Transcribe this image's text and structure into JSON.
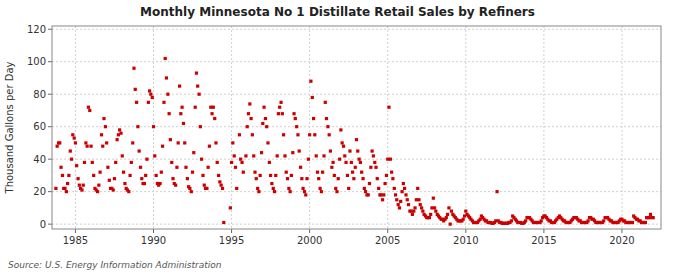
{
  "chart_data": {
    "type": "scatter",
    "title": "Monthly Minnesota No 1 Distillate Retail Sales by Refiners",
    "ylabel": "Thousand Gallons per Day",
    "source": "Source: U.S. Energy Information Administration",
    "color": "#cc0000",
    "marker": "square",
    "grid": true,
    "xlim": [
      1983.5,
      2022.5
    ],
    "ylim": [
      -3,
      122
    ],
    "xticks": [
      1985,
      1990,
      1995,
      2000,
      2005,
      2010,
      2015,
      2020
    ],
    "yticks": [
      0,
      20,
      40,
      60,
      80,
      100,
      120
    ],
    "x": [
      1983.75,
      1983.83,
      1983.92,
      1984.0,
      1984.08,
      1984.17,
      1984.25,
      1984.33,
      1984.42,
      1984.5,
      1984.58,
      1984.67,
      1984.75,
      1984.83,
      1984.92,
      1985.0,
      1985.08,
      1985.17,
      1985.25,
      1985.33,
      1985.42,
      1985.5,
      1985.58,
      1985.67,
      1985.75,
      1985.83,
      1985.92,
      1986.0,
      1986.08,
      1986.17,
      1986.25,
      1986.33,
      1986.42,
      1986.5,
      1986.58,
      1986.67,
      1986.75,
      1986.83,
      1986.92,
      1987.0,
      1987.08,
      1987.17,
      1987.25,
      1987.33,
      1987.42,
      1987.5,
      1987.58,
      1987.67,
      1987.75,
      1987.83,
      1987.92,
      1988.0,
      1988.08,
      1988.17,
      1988.25,
      1988.33,
      1988.42,
      1988.5,
      1988.58,
      1988.67,
      1988.75,
      1988.83,
      1988.92,
      1989.0,
      1989.08,
      1989.17,
      1989.25,
      1989.33,
      1989.42,
      1989.5,
      1989.58,
      1989.67,
      1989.75,
      1989.83,
      1989.92,
      1990.0,
      1990.08,
      1990.17,
      1990.25,
      1990.33,
      1990.42,
      1990.5,
      1990.58,
      1990.67,
      1990.75,
      1990.83,
      1990.92,
      1991.0,
      1991.08,
      1991.17,
      1991.25,
      1991.33,
      1991.42,
      1991.5,
      1991.58,
      1991.67,
      1991.75,
      1991.83,
      1991.92,
      1992.0,
      1992.08,
      1992.17,
      1992.25,
      1992.33,
      1992.42,
      1992.5,
      1992.58,
      1992.67,
      1992.75,
      1992.83,
      1992.92,
      1993.0,
      1993.08,
      1993.17,
      1993.25,
      1993.33,
      1993.42,
      1993.5,
      1993.58,
      1993.67,
      1993.75,
      1993.83,
      1993.92,
      1994.0,
      1994.08,
      1994.17,
      1994.25,
      1994.33,
      1994.42,
      1994.5,
      1994.92,
      1995.0,
      1995.08,
      1995.17,
      1995.25,
      1995.33,
      1995.5,
      1995.58,
      1995.67,
      1995.75,
      1995.92,
      1996.0,
      1996.08,
      1996.17,
      1996.25,
      1996.33,
      1996.42,
      1996.5,
      1996.58,
      1996.67,
      1996.75,
      1996.83,
      1996.92,
      1997.0,
      1997.08,
      1997.17,
      1997.25,
      1997.33,
      1997.42,
      1997.5,
      1997.58,
      1997.67,
      1997.75,
      1997.83,
      1997.92,
      1998.0,
      1998.08,
      1998.17,
      1998.25,
      1998.33,
      1998.42,
      1998.5,
      1998.58,
      1998.67,
      1998.75,
      1998.83,
      1998.92,
      1999.0,
      1999.08,
      1999.17,
      1999.25,
      1999.33,
      1999.42,
      1999.5,
      1999.58,
      1999.67,
      1999.75,
      1999.83,
      1999.92,
      2000.0,
      2000.08,
      2000.17,
      2000.25,
      2000.33,
      2000.42,
      2000.5,
      2000.58,
      2000.67,
      2000.75,
      2000.83,
      2000.92,
      2001.0,
      2001.08,
      2001.17,
      2001.25,
      2001.33,
      2001.42,
      2001.5,
      2001.58,
      2001.67,
      2001.75,
      2001.83,
      2001.92,
      2002.0,
      2002.08,
      2002.17,
      2002.25,
      2002.33,
      2002.42,
      2002.5,
      2002.58,
      2002.67,
      2002.75,
      2002.83,
      2002.92,
      2003.0,
      2003.08,
      2003.17,
      2003.25,
      2003.33,
      2003.42,
      2003.5,
      2003.58,
      2003.67,
      2003.75,
      2003.83,
      2003.92,
      2004.0,
      2004.08,
      2004.17,
      2004.25,
      2004.33,
      2004.42,
      2004.5,
      2004.58,
      2004.67,
      2004.75,
      2004.83,
      2004.92,
      2005.0,
      2005.08,
      2005.17,
      2005.25,
      2005.33,
      2005.42,
      2005.5,
      2005.58,
      2005.67,
      2005.75,
      2005.83,
      2005.92,
      2006.0,
      2006.08,
      2006.17,
      2006.25,
      2006.33,
      2006.42,
      2006.5,
      2006.58,
      2006.67,
      2006.75,
      2006.83,
      2006.92,
      2007.0,
      2007.08,
      2007.17,
      2007.25,
      2007.33,
      2007.42,
      2007.5,
      2007.58,
      2007.67,
      2007.75,
      2007.83,
      2007.92,
      2008.0,
      2008.08,
      2008.17,
      2008.25,
      2008.33,
      2008.42,
      2008.5,
      2008.58,
      2008.67,
      2008.75,
      2008.83,
      2008.92,
      2009.0,
      2009.08,
      2009.17,
      2009.25,
      2009.33,
      2009.42,
      2009.5,
      2009.58,
      2009.67,
      2009.75,
      2009.83,
      2009.92,
      2010.0,
      2010.08,
      2010.17,
      2010.25,
      2010.33,
      2010.42,
      2010.5,
      2010.58,
      2010.67,
      2010.75,
      2010.83,
      2010.92,
      2011.0,
      2011.08,
      2011.17,
      2011.25,
      2011.33,
      2011.42,
      2011.5,
      2011.58,
      2011.67,
      2011.75,
      2011.83,
      2011.92,
      2012.0,
      2012.08,
      2012.17,
      2012.25,
      2012.33,
      2012.42,
      2012.5,
      2012.58,
      2012.67,
      2012.75,
      2012.83,
      2012.92,
      2013.0,
      2013.08,
      2013.17,
      2013.25,
      2013.33,
      2013.42,
      2013.5,
      2013.58,
      2013.67,
      2013.75,
      2013.83,
      2013.92,
      2014.0,
      2014.08,
      2014.17,
      2014.25,
      2014.33,
      2014.42,
      2014.5,
      2014.58,
      2014.67,
      2014.75,
      2014.83,
      2014.92,
      2015.0,
      2015.08,
      2015.17,
      2015.25,
      2015.33,
      2015.42,
      2015.5,
      2015.58,
      2015.67,
      2015.75,
      2015.83,
      2015.92,
      2016.0,
      2016.08,
      2016.17,
      2016.25,
      2016.33,
      2016.42,
      2016.5,
      2016.58,
      2016.67,
      2016.75,
      2016.83,
      2016.92,
      2017.0,
      2017.08,
      2017.17,
      2017.25,
      2017.33,
      2017.42,
      2017.5,
      2017.58,
      2017.67,
      2017.75,
      2017.83,
      2017.92,
      2018.0,
      2018.08,
      2018.17,
      2018.25,
      2018.33,
      2018.42,
      2018.5,
      2018.58,
      2018.67,
      2018.75,
      2018.83,
      2018.92,
      2019.0,
      2019.08,
      2019.17,
      2019.25,
      2019.33,
      2019.42,
      2019.5,
      2019.58,
      2019.67,
      2019.75,
      2019.83,
      2019.92,
      2020.0,
      2020.08,
      2020.17,
      2020.25,
      2020.33,
      2020.42,
      2020.5,
      2020.58,
      2020.67,
      2020.75,
      2020.83,
      2020.92,
      2021.0,
      2021.08,
      2021.17,
      2021.25,
      2021.33,
      2021.42,
      2021.5,
      2021.58,
      2021.67,
      2021.75,
      2021.83,
      2021.92,
      2022.0
    ],
    "values": [
      22,
      48,
      50,
      50,
      35,
      30,
      22,
      22,
      20,
      25,
      30,
      45,
      40,
      55,
      53,
      50,
      36,
      28,
      24,
      22,
      21,
      24,
      38,
      50,
      48,
      72,
      70,
      48,
      38,
      30,
      22,
      21,
      20,
      24,
      32,
      55,
      48,
      65,
      60,
      50,
      35,
      27,
      22,
      22,
      21,
      28,
      38,
      52,
      55,
      58,
      56,
      42,
      32,
      25,
      22,
      21,
      20,
      30,
      38,
      50,
      96,
      83,
      75,
      60,
      45,
      35,
      28,
      25,
      25,
      30,
      40,
      75,
      82,
      80,
      78,
      60,
      42,
      30,
      25,
      24,
      25,
      32,
      48,
      75,
      102,
      90,
      80,
      68,
      52,
      38,
      28,
      25,
      24,
      35,
      50,
      85,
      68,
      72,
      62,
      50,
      35,
      28,
      23,
      22,
      20,
      32,
      44,
      72,
      93,
      85,
      80,
      60,
      40,
      30,
      24,
      22,
      22,
      35,
      48,
      72,
      68,
      72,
      65,
      50,
      38,
      30,
      26,
      24,
      22,
      1,
      10,
      38,
      50,
      42,
      35,
      22,
      55,
      40,
      38,
      32,
      42,
      60,
      68,
      74,
      65,
      55,
      42,
      32,
      28,
      22,
      20,
      30,
      44,
      62,
      72,
      65,
      60,
      50,
      38,
      30,
      25,
      22,
      20,
      30,
      42,
      68,
      72,
      75,
      68,
      55,
      42,
      32,
      28,
      22,
      20,
      30,
      44,
      68,
      65,
      60,
      55,
      45,
      35,
      28,
      22,
      20,
      18,
      28,
      40,
      55,
      88,
      78,
      65,
      55,
      42,
      32,
      28,
      22,
      20,
      32,
      42,
      75,
      65,
      60,
      55,
      45,
      35,
      38,
      30,
      22,
      20,
      28,
      40,
      58,
      50,
      48,
      42,
      38,
      30,
      22,
      45,
      38,
      32,
      28,
      35,
      52,
      45,
      40,
      38,
      32,
      28,
      22,
      20,
      18,
      18,
      25,
      35,
      45,
      42,
      38,
      35,
      28,
      22,
      18,
      18,
      15,
      18,
      25,
      30,
      40,
      72,
      40,
      32,
      28,
      22,
      18,
      15,
      12,
      10,
      14,
      20,
      25,
      22,
      18,
      15,
      12,
      8,
      8,
      6,
      8,
      10,
      15,
      22,
      15,
      12,
      10,
      8,
      6,
      5,
      4,
      4,
      4,
      6,
      10,
      16,
      10,
      8,
      6,
      5,
      4,
      3,
      3,
      2,
      3,
      4,
      6,
      10,
      0,
      8,
      6,
      5,
      4,
      3,
      2,
      2,
      2,
      2,
      3,
      5,
      8,
      6,
      5,
      4,
      3,
      2,
      1,
      1,
      1,
      1,
      2,
      3,
      5,
      4,
      3,
      2,
      2,
      1,
      1,
      1,
      0.5,
      0.5,
      1,
      2,
      20,
      2,
      1,
      1,
      0.5,
      0.5,
      0.5,
      0.5,
      0.5,
      1,
      1,
      2,
      5,
      4,
      3,
      2,
      1,
      1,
      1,
      0.5,
      0.5,
      1,
      2,
      4,
      4,
      4,
      3,
      2,
      1,
      1,
      1,
      1,
      1,
      1,
      2,
      4,
      5,
      5,
      4,
      3,
      2,
      2,
      1,
      1,
      1,
      2,
      3,
      4,
      5,
      4,
      3,
      2,
      2,
      1,
      1,
      1,
      1,
      2,
      3,
      4,
      4,
      4,
      3,
      2,
      2,
      1,
      1,
      1,
      1,
      1,
      2,
      4,
      4,
      3,
      3,
      2,
      1,
      1,
      1,
      1,
      1,
      1,
      2,
      4,
      4,
      4,
      3,
      2,
      2,
      1,
      1,
      1,
      1,
      1,
      2,
      3,
      3,
      2,
      2,
      1,
      1,
      1,
      1,
      1,
      1,
      5,
      4,
      3,
      3,
      2,
      2,
      1,
      1,
      1,
      1,
      4,
      4,
      4,
      6,
      4,
      4
    ]
  }
}
